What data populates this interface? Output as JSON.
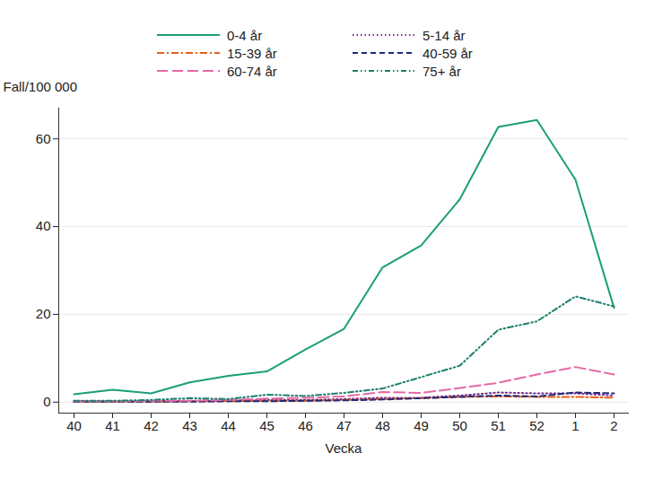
{
  "chart_data": {
    "type": "line",
    "x_label": "Vecka",
    "y_label": "Fall/100 000",
    "categories": [
      "40",
      "41",
      "42",
      "43",
      "44",
      "45",
      "46",
      "47",
      "48",
      "49",
      "50",
      "51",
      "52",
      "1",
      "2"
    ],
    "series": [
      {
        "name": "0-4 år",
        "color": "#1a9e77",
        "line_style": "solid",
        "values": [
          1.8,
          2.8,
          2.0,
          4.5,
          6.0,
          7.0,
          12.0,
          16.7,
          30.7,
          35.7,
          46.2,
          62.7,
          64.3,
          50.7,
          21.5
        ]
      },
      {
        "name": "5-14 år",
        "color": "#7b2d8e",
        "line_style": "dotted",
        "values": [
          0.2,
          0.2,
          0.3,
          0.3,
          0.4,
          0.5,
          0.5,
          0.7,
          1.0,
          1.0,
          1.5,
          2.2,
          2.0,
          2.0,
          1.5
        ]
      },
      {
        "name": "15-39 år",
        "color": "#e8601c",
        "line_style": "dashdot",
        "values": [
          0.1,
          0.1,
          0.1,
          0.2,
          0.2,
          0.3,
          0.3,
          0.5,
          0.7,
          0.9,
          1.2,
          1.3,
          1.2,
          1.2,
          1.0
        ]
      },
      {
        "name": "40-59 år",
        "color": "#1f2a7a",
        "line_style": "dashed",
        "values": [
          0.1,
          0.1,
          0.1,
          0.1,
          0.2,
          0.2,
          0.3,
          0.4,
          0.6,
          0.9,
          1.2,
          1.5,
          1.3,
          2.2,
          2.0
        ]
      },
      {
        "name": "60-74 år",
        "color": "#e56aa6",
        "line_style": "longdash",
        "values": [
          0.2,
          0.2,
          0.3,
          0.3,
          0.5,
          0.8,
          1.0,
          1.3,
          2.3,
          2.1,
          3.2,
          4.4,
          6.3,
          8.0,
          6.3
        ]
      },
      {
        "name": "75+ år",
        "color": "#1b7f6e",
        "line_style": "dashdotdot",
        "values": [
          0.3,
          0.3,
          0.5,
          0.9,
          0.7,
          1.7,
          1.4,
          2.1,
          3.1,
          5.7,
          8.3,
          16.5,
          18.4,
          24.1,
          21.8
        ]
      }
    ],
    "ylim": [
      -2.5,
      67
    ],
    "yticks": [
      0,
      20,
      40,
      60
    ],
    "grid": true,
    "legend": "top"
  }
}
